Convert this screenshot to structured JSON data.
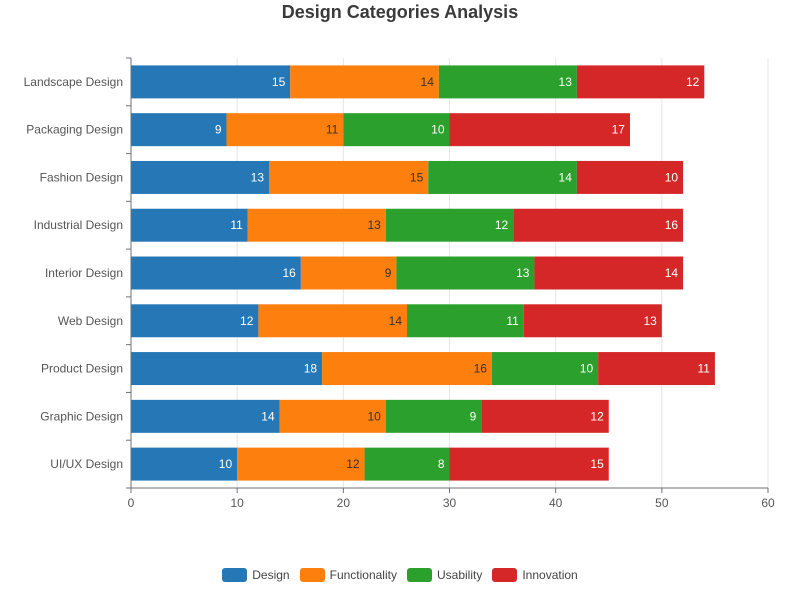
{
  "chart_data": {
    "type": "bar",
    "orientation": "horizontal",
    "stacked": true,
    "title": "Design Categories Analysis",
    "xlabel": "",
    "ylabel": "",
    "xlim": [
      0,
      60
    ],
    "x_ticks": [
      0,
      10,
      20,
      30,
      40,
      50,
      60
    ],
    "grid": true,
    "legend_position": "bottom",
    "categories": [
      "Landscape Design",
      "Packaging Design",
      "Fashion Design",
      "Industrial Design",
      "Interior Design",
      "Web Design",
      "Product Design",
      "Graphic Design",
      "UI/UX Design"
    ],
    "series": [
      {
        "name": "Design",
        "color": "#2577b6",
        "label_color": "#ffffff",
        "values": [
          15,
          9,
          13,
          11,
          16,
          12,
          18,
          14,
          10
        ]
      },
      {
        "name": "Functionality",
        "color": "#fd7f0e",
        "label_color": "#333333",
        "values": [
          14,
          11,
          15,
          13,
          9,
          14,
          16,
          10,
          12
        ]
      },
      {
        "name": "Usability",
        "color": "#2ca02c",
        "label_color": "#ffffff",
        "values": [
          13,
          10,
          14,
          12,
          13,
          11,
          10,
          9,
          8
        ]
      },
      {
        "name": "Innovation",
        "color": "#d62728",
        "label_color": "#ffffff",
        "values": [
          12,
          17,
          10,
          16,
          14,
          13,
          11,
          12,
          15
        ]
      }
    ]
  }
}
